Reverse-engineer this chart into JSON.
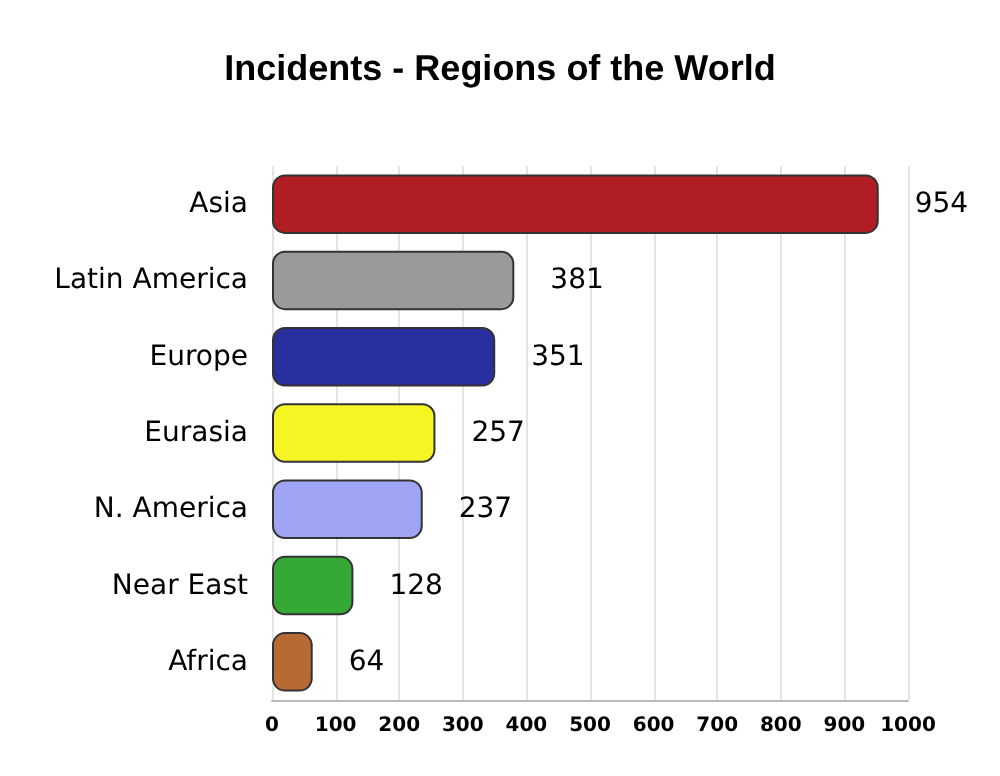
{
  "chart_data": {
    "type": "bar",
    "orientation": "horizontal",
    "title": "Incidents - Regions of the World",
    "categories": [
      "Asia",
      "Latin America",
      "Europe",
      "Eurasia",
      "N. America",
      "Near East",
      "Africa"
    ],
    "values": [
      954,
      381,
      351,
      257,
      237,
      128,
      64
    ],
    "colors": [
      "#b01e24",
      "#9a9a9a",
      "#2a2fa0",
      "#f5f524",
      "#a0a4f5",
      "#36a836",
      "#b86a34"
    ],
    "xlim": [
      0,
      1000
    ],
    "xticks": [
      0,
      100,
      200,
      300,
      400,
      500,
      600,
      700,
      800,
      900,
      1000
    ],
    "grid": "x",
    "data_labels": true
  }
}
